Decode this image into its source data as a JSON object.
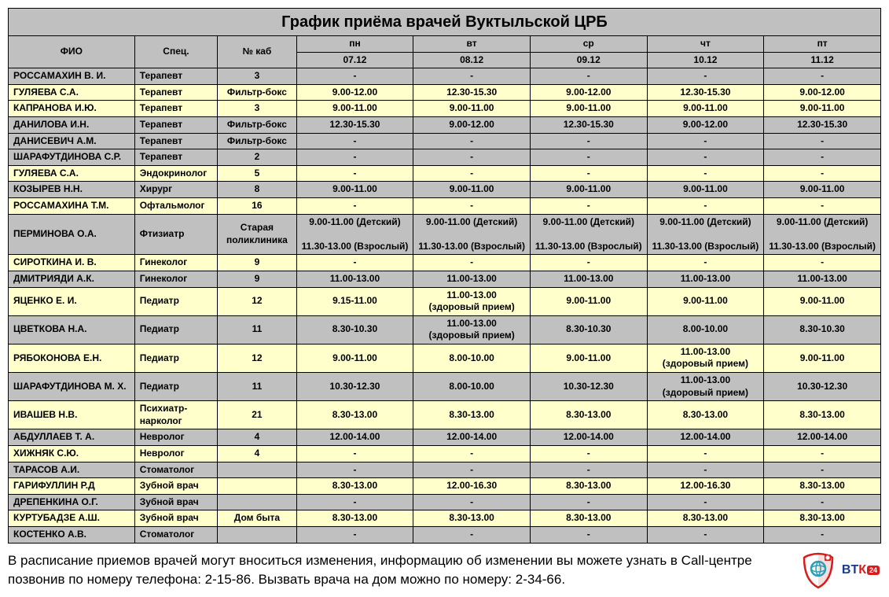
{
  "title": "График приёма врачей Вуктыльской ЦРБ",
  "columns": {
    "fio": "ФИО",
    "spec": "Спец.",
    "cab": "№ каб",
    "days": [
      "пн",
      "вт",
      "ср",
      "чт",
      "пт"
    ],
    "dates": [
      "07.12",
      "08.12",
      "09.12",
      "10.12",
      "11.12"
    ]
  },
  "rows": [
    {
      "color": "gray",
      "name": "РОССАМАХИН В. И.",
      "spec": "Терапевт",
      "cab": "3",
      "sched": [
        "-",
        "-",
        "-",
        "-",
        "-"
      ]
    },
    {
      "color": "yellow",
      "name": "ГУЛЯЕВА С.А.",
      "spec": "Терапевт",
      "cab": "Фильтр-бокс",
      "sched": [
        "9.00-12.00",
        "12.30-15.30",
        "9.00-12.00",
        "12.30-15.30",
        "9.00-12.00"
      ]
    },
    {
      "color": "yellow",
      "name": "КАПРАНОВА И.Ю.",
      "spec": "Терапевт",
      "cab": "3",
      "sched": [
        "9.00-11.00",
        "9.00-11.00",
        "9.00-11.00",
        "9.00-11.00",
        "9.00-11.00"
      ]
    },
    {
      "color": "gray",
      "name": "ДАНИЛОВА И.Н.",
      "spec": "Терапевт",
      "cab": "Фильтр-бокс",
      "sched": [
        "12.30-15.30",
        "9.00-12.00",
        "12.30-15.30",
        "9.00-12.00",
        "12.30-15.30"
      ]
    },
    {
      "color": "gray",
      "name": "ДАНИСЕВИЧ А.М.",
      "spec": "Терапевт",
      "cab": "Фильтр-бокс",
      "sched": [
        "-",
        "-",
        "-",
        "-",
        "-"
      ]
    },
    {
      "color": "gray",
      "name": "ШАРАФУТДИНОВА С.Р.",
      "spec": "Терапевт",
      "cab": "2",
      "sched": [
        "-",
        "-",
        "-",
        "-",
        "-"
      ]
    },
    {
      "color": "yellow",
      "name": "ГУЛЯЕВА С.А.",
      "spec": "Эндокринолог",
      "cab": "5",
      "sched": [
        "-",
        "-",
        "-",
        "-",
        "-"
      ]
    },
    {
      "color": "gray",
      "name": "КОЗЫРЕВ Н.Н.",
      "spec": "Хирург",
      "cab": "8",
      "sched": [
        "9.00-11.00",
        "9.00-11.00",
        "9.00-11.00",
        "9.00-11.00",
        "9.00-11.00"
      ]
    },
    {
      "color": "yellow",
      "name": "РОССАМАХИНА Т.М.",
      "spec": "Офтальмолог",
      "cab": "16",
      "sched": [
        "-",
        "-",
        "-",
        "-",
        "-"
      ]
    },
    {
      "color": "gray",
      "name": "ПЕРМИНОВА О.А.",
      "spec": "Фтизиатр",
      "cab": "Старая поликлиника",
      "sched": [
        "9.00-11.00 (Детский)\n\n11.30-13.00 (Взрослый)",
        "9.00-11.00 (Детский)\n\n11.30-13.00 (Взрослый)",
        "9.00-11.00 (Детский)\n\n11.30-13.00 (Взрослый)",
        "9.00-11.00 (Детский)\n\n11.30-13.00 (Взрослый)",
        "9.00-11.00 (Детский)\n\n11.30-13.00 (Взрослый)"
      ],
      "multiline": true
    },
    {
      "color": "yellow",
      "name": "СИРОТКИНА И. В.",
      "spec": "Гинеколог",
      "cab": "9",
      "sched": [
        "-",
        "-",
        "-",
        "-",
        "-"
      ]
    },
    {
      "color": "gray",
      "name": "ДМИТРИЯДИ А.К.",
      "spec": "Гинеколог",
      "cab": "9",
      "sched": [
        "11.00-13.00",
        "11.00-13.00",
        "11.00-13.00",
        "11.00-13.00",
        "11.00-13.00"
      ]
    },
    {
      "color": "yellow",
      "name": "ЯЦЕНКО Е. И.",
      "spec": "Педиатр",
      "cab": "12",
      "sched": [
        "9.15-11.00",
        "11.00-13.00\n(здоровый прием)",
        "9.00-11.00",
        "9.00-11.00",
        "9.00-11.00"
      ],
      "multiline": true
    },
    {
      "color": "gray",
      "name": "ЦВЕТКОВА Н.А.",
      "spec": "Педиатр",
      "cab": "11",
      "sched": [
        "8.30-10.30",
        "11.00-13.00\n(здоровый прием)",
        "8.30-10.30",
        "8.00-10.00",
        "8.30-10.30"
      ],
      "multiline": true
    },
    {
      "color": "yellow",
      "name": "РЯБОКОНОВА Е.Н.",
      "spec": "Педиатр",
      "cab": "12",
      "sched": [
        "9.00-11.00",
        "8.00-10.00",
        "9.00-11.00",
        "11.00-13.00\n(здоровый прием)",
        "9.00-11.00"
      ],
      "multiline": true
    },
    {
      "color": "gray",
      "name": "ШАРАФУТДИНОВА М. Х.",
      "spec": "Педиатр",
      "cab": "11",
      "sched": [
        "10.30-12.30",
        "8.00-10.00",
        "10.30-12.30",
        "11.00-13.00\n(здоровый прием)",
        "10.30-12.30"
      ],
      "multiline": true
    },
    {
      "color": "yellow",
      "name": "ИВАШЕВ Н.В.",
      "spec": "Психиатр-нарколог",
      "cab": "21",
      "sched": [
        "8.30-13.00",
        "8.30-13.00",
        "8.30-13.00",
        "8.30-13.00",
        "8.30-13.00"
      ]
    },
    {
      "color": "gray",
      "name": "АБДУЛЛАЕВ Т. А.",
      "spec": "Невролог",
      "cab": "4",
      "sched": [
        "12.00-14.00",
        "12.00-14.00",
        "12.00-14.00",
        "12.00-14.00",
        "12.00-14.00"
      ]
    },
    {
      "color": "yellow",
      "name": "ХИЖНЯК С.Ю.",
      "spec": "Невролог",
      "cab": "4",
      "sched": [
        "-",
        "-",
        "-",
        "-",
        "-"
      ]
    },
    {
      "color": "gray",
      "name": "ТАРАСОВ А.И.",
      "spec": "Стоматолог",
      "cab": "",
      "sched": [
        "-",
        "-",
        "-",
        "-",
        "-"
      ]
    },
    {
      "color": "yellow",
      "name": "ГАРИФУЛЛИН Р.Д",
      "spec": "Зубной врач",
      "cab": "",
      "sched": [
        "8.30-13.00",
        "12.00-16.30",
        "8.30-13.00",
        "12.00-16.30",
        "8.30-13.00"
      ]
    },
    {
      "color": "gray",
      "name": "ДРЕПЕНКИНА О.Г.",
      "spec": "Зубной врач",
      "cab": "",
      "sched": [
        "-",
        "-",
        "-",
        "-",
        "-"
      ]
    },
    {
      "color": "yellow",
      "name": "КУРТУБАДЗЕ А.Ш.",
      "spec": "Зубной врач",
      "cab": "Дом быта",
      "sched": [
        "8.30-13.00",
        "8.30-13.00",
        "8.30-13.00",
        "8.30-13.00",
        "8.30-13.00"
      ]
    },
    {
      "color": "gray",
      "name": "КОСТЕНКО А.В.",
      "spec": "Стоматолог",
      "cab": "",
      "sched": [
        "-",
        "-",
        "-",
        "-",
        "-"
      ]
    }
  ],
  "footer": "В расписание приемов врачей могут вноситься изменения, информацию об изменении вы можете узнать в Call-центре позвонив по номеру телефона: 2-15-86. Вызвать врача на дом можно по номеру: 2-34-66.",
  "logo": {
    "btk_text": "ВТК",
    "btk_badge": "24"
  },
  "colors": {
    "header_bg": "#c0c0c0",
    "row_gray": "#c0c0c0",
    "row_yellow": "#ffffcc",
    "border": "#000000",
    "text": "#000000"
  }
}
